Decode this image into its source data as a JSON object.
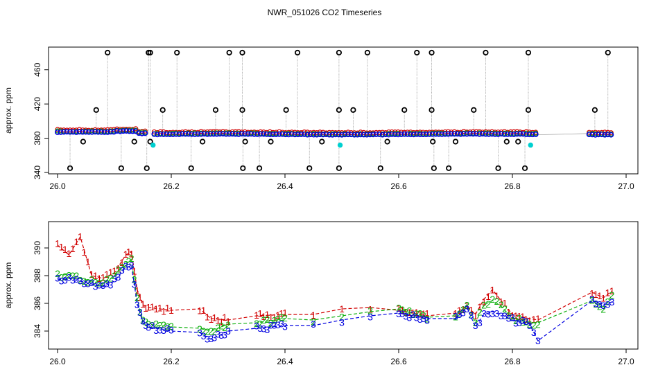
{
  "title": "NWR_051026  CO2 Timeseries",
  "chart_data": [
    {
      "type": "scatter",
      "id": "top",
      "ylabel": "approx. ppm",
      "xlim": [
        26.0,
        27.0
      ],
      "ylim": [
        340,
        480
      ],
      "xticks": [
        26.0,
        26.2,
        26.4,
        26.6,
        26.8,
        27.0
      ],
      "xtick_labels": [
        "26.0",
        "26.2",
        "26.4",
        "26.6",
        "26.8",
        "27.0"
      ],
      "yticks": [
        340,
        380,
        420,
        460
      ],
      "ytick_labels": [
        "340",
        "380",
        "420",
        "460"
      ],
      "segments": [
        [
          26.0,
          26.155
        ],
        [
          26.17,
          26.845
        ],
        [
          26.935,
          26.975
        ]
      ],
      "series_colors": {
        "s1": "#d10000",
        "s2": "#10b010",
        "s3": "#0000e0",
        "outlier": "#000000",
        "cyan": "#00d0d0",
        "line": "#a0a0a0"
      },
      "high_outliers_x": [
        26.088,
        26.16,
        26.163,
        26.21,
        26.302,
        26.325,
        26.422,
        26.495,
        26.545,
        26.632,
        26.658,
        26.753,
        26.828,
        26.968
      ],
      "low_outliers_x": [
        26.022,
        26.112,
        26.157,
        26.235,
        26.326,
        26.355,
        26.443,
        26.495,
        26.568,
        26.662,
        26.688,
        26.775,
        26.822
      ],
      "mid_outliers": [
        [
          26.068,
          413
        ],
        [
          26.185,
          413
        ],
        [
          26.278,
          413
        ],
        [
          26.325,
          413
        ],
        [
          26.402,
          413
        ],
        [
          26.495,
          413
        ],
        [
          26.52,
          413
        ],
        [
          26.61,
          413
        ],
        [
          26.658,
          413
        ],
        [
          26.732,
          413
        ],
        [
          26.828,
          413
        ],
        [
          26.945,
          413
        ]
      ],
      "small_outliers": [
        [
          26.045,
          376
        ],
        [
          26.135,
          376
        ],
        [
          26.163,
          376
        ],
        [
          26.255,
          376
        ],
        [
          26.33,
          376
        ],
        [
          26.375,
          376
        ],
        [
          26.465,
          376
        ],
        [
          26.58,
          376
        ],
        [
          26.66,
          376
        ],
        [
          26.7,
          376
        ],
        [
          26.79,
          376
        ],
        [
          26.81,
          376
        ]
      ],
      "cyan_points": [
        [
          26.168,
          372
        ],
        [
          26.497,
          372
        ],
        [
          26.832,
          372
        ]
      ]
    },
    {
      "type": "line",
      "id": "bottom",
      "ylabel": "approx. ppm",
      "xlim": [
        26.0,
        27.0
      ],
      "ylim": [
        382.8,
        391.5
      ],
      "xticks": [
        26.0,
        26.2,
        26.4,
        26.6,
        26.8,
        27.0
      ],
      "xtick_labels": [
        "26.0",
        "26.2",
        "26.4",
        "26.6",
        "26.8",
        "27.0"
      ],
      "yticks": [
        384,
        386,
        388,
        390
      ],
      "ytick_labels": [
        "384",
        "386",
        "388",
        "390"
      ],
      "series": [
        {
          "name": "1",
          "color": "#d10000",
          "x": [
            26.0,
            26.02,
            26.04,
            26.06,
            26.08,
            26.1,
            26.12,
            26.13,
            26.14,
            26.15,
            26.16,
            26.2,
            26.25,
            26.27,
            26.3,
            26.35,
            26.4,
            26.45,
            26.5,
            26.55,
            26.6,
            26.65,
            26.7,
            26.72,
            26.735,
            26.75,
            26.765,
            26.78,
            26.8,
            26.83,
            26.845,
            26.94,
            26.96,
            26.975
          ],
          "y": [
            390.2,
            389.5,
            390.8,
            388.0,
            387.8,
            388.2,
            389.5,
            389.7,
            387.0,
            385.9,
            385.7,
            385.5,
            385.6,
            384.9,
            384.8,
            385.1,
            385.2,
            385.2,
            385.6,
            385.7,
            385.5,
            385.1,
            385.3,
            385.8,
            385.2,
            386.3,
            387.0,
            386.2,
            385.2,
            384.9,
            384.8,
            386.8,
            386.4,
            386.9
          ]
        },
        {
          "name": "2",
          "color": "#10b010",
          "x": [
            26.0,
            26.02,
            26.04,
            26.06,
            26.08,
            26.1,
            26.12,
            26.13,
            26.14,
            26.15,
            26.16,
            26.2,
            26.25,
            26.27,
            26.3,
            26.35,
            26.4,
            26.45,
            26.5,
            26.55,
            26.6,
            26.65,
            26.7,
            26.72,
            26.735,
            26.75,
            26.765,
            26.78,
            26.8,
            26.83,
            26.845,
            26.94,
            26.96,
            26.975
          ],
          "y": [
            388.0,
            388.1,
            387.8,
            387.6,
            387.4,
            388.0,
            388.9,
            389.1,
            386.3,
            384.7,
            384.5,
            384.3,
            384.2,
            384.0,
            384.5,
            384.6,
            384.9,
            384.8,
            385.1,
            385.4,
            385.6,
            385.0,
            385.1,
            385.9,
            384.6,
            385.9,
            386.2,
            385.8,
            384.9,
            384.6,
            384.6,
            386.2,
            385.6,
            386.6
          ]
        },
        {
          "name": "3",
          "color": "#0000e0",
          "x": [
            26.0,
            26.02,
            26.04,
            26.06,
            26.08,
            26.1,
            26.12,
            26.13,
            26.14,
            26.15,
            26.16,
            26.2,
            26.25,
            26.27,
            26.3,
            26.35,
            26.4,
            26.45,
            26.5,
            26.55,
            26.6,
            26.65,
            26.7,
            26.72,
            26.735,
            26.75,
            26.765,
            26.78,
            26.8,
            26.83,
            26.845,
            26.94,
            26.96,
            26.975
          ],
          "y": [
            387.7,
            387.8,
            387.6,
            387.4,
            387.2,
            387.6,
            388.6,
            388.7,
            386.0,
            384.6,
            384.3,
            384.0,
            383.9,
            383.4,
            384.0,
            384.2,
            384.4,
            384.4,
            384.8,
            385.1,
            385.3,
            384.9,
            384.9,
            385.7,
            384.3,
            385.2,
            385.4,
            385.2,
            384.8,
            384.5,
            383.3,
            386.2,
            385.9,
            386.1
          ]
        }
      ]
    }
  ]
}
